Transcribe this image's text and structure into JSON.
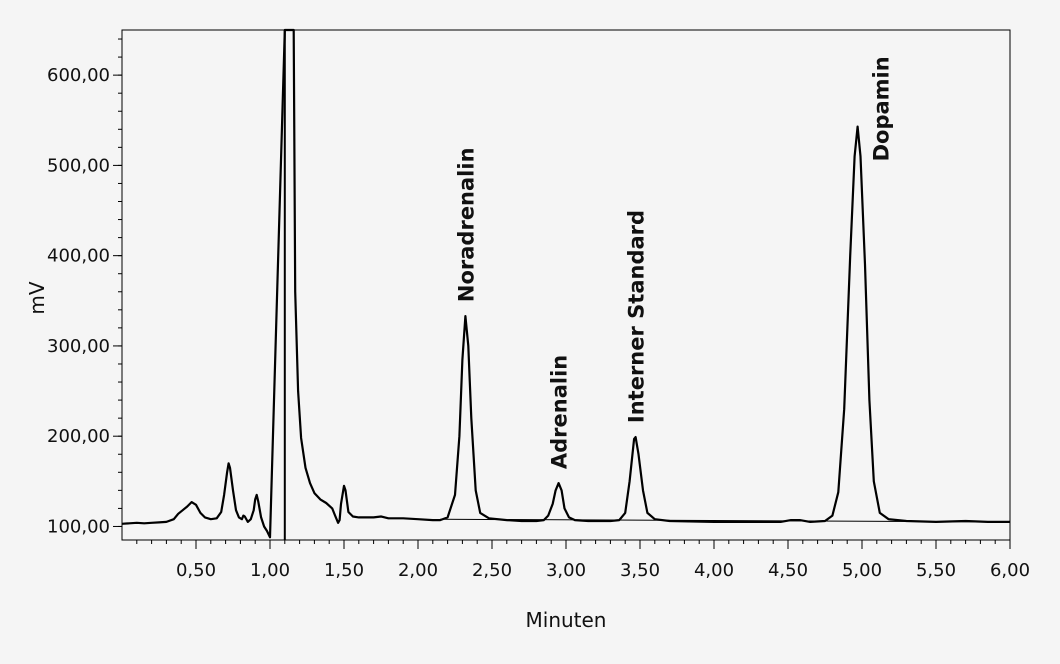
{
  "chart_data": {
    "type": "line",
    "xlabel": "Minuten",
    "ylabel": "mV",
    "xlim": [
      0,
      6.0
    ],
    "ylim": [
      85,
      650
    ],
    "grid": false,
    "x_ticks": [
      0.5,
      1.0,
      1.5,
      2.0,
      2.5,
      3.0,
      3.5,
      4.0,
      4.5,
      5.0,
      5.5,
      6.0
    ],
    "x_tick_labels": [
      "0,50",
      "1,00",
      "1,50",
      "2,00",
      "2,50",
      "3,00",
      "3,50",
      "4,00",
      "4,50",
      "5,00",
      "5,50",
      "6,00"
    ],
    "y_ticks": [
      100,
      200,
      300,
      400,
      500,
      600
    ],
    "y_tick_labels": [
      "100,00",
      "200,00",
      "300,00",
      "400,00",
      "500,00",
      "600,00"
    ],
    "series": [
      {
        "color": "#000000",
        "points": [
          [
            0.0,
            103
          ],
          [
            0.05,
            103.5
          ],
          [
            0.1,
            104
          ],
          [
            0.15,
            103.5
          ],
          [
            0.2,
            104
          ],
          [
            0.25,
            104.5
          ],
          [
            0.3,
            105
          ],
          [
            0.35,
            108
          ],
          [
            0.38,
            114
          ],
          [
            0.41,
            118
          ],
          [
            0.44,
            122
          ],
          [
            0.47,
            127
          ],
          [
            0.5,
            124
          ],
          [
            0.53,
            115
          ],
          [
            0.56,
            110
          ],
          [
            0.6,
            108
          ],
          [
            0.64,
            109
          ],
          [
            0.67,
            116
          ],
          [
            0.69,
            135
          ],
          [
            0.71,
            160
          ],
          [
            0.72,
            170
          ],
          [
            0.73,
            165
          ],
          [
            0.75,
            140
          ],
          [
            0.77,
            118
          ],
          [
            0.79,
            110
          ],
          [
            0.81,
            108
          ],
          [
            0.82,
            112
          ],
          [
            0.83,
            111
          ],
          [
            0.85,
            105
          ],
          [
            0.87,
            108
          ],
          [
            0.89,
            118
          ],
          [
            0.9,
            130
          ],
          [
            0.91,
            135
          ],
          [
            0.92,
            128
          ],
          [
            0.94,
            110
          ],
          [
            0.96,
            100
          ],
          [
            0.98,
            95
          ],
          [
            1.0,
            88
          ],
          [
            1.1,
            650
          ],
          [
            1.13,
            650
          ],
          [
            1.16,
            650
          ],
          [
            1.17,
            360
          ],
          [
            1.19,
            250
          ],
          [
            1.21,
            198
          ],
          [
            1.24,
            165
          ],
          [
            1.27,
            148
          ],
          [
            1.3,
            137
          ],
          [
            1.34,
            130
          ],
          [
            1.38,
            126
          ],
          [
            1.42,
            120
          ],
          [
            1.44,
            112
          ],
          [
            1.46,
            104
          ],
          [
            1.47,
            107
          ],
          [
            1.48,
            125
          ],
          [
            1.5,
            145
          ],
          [
            1.51,
            140
          ],
          [
            1.53,
            116
          ],
          [
            1.56,
            111
          ],
          [
            1.6,
            110
          ],
          [
            1.7,
            110
          ],
          [
            1.75,
            111
          ],
          [
            1.8,
            109
          ],
          [
            1.9,
            109
          ],
          [
            2.0,
            108
          ],
          [
            2.1,
            107
          ],
          [
            2.15,
            107
          ],
          [
            2.2,
            110
          ],
          [
            2.25,
            135
          ],
          [
            2.28,
            200
          ],
          [
            2.3,
            285
          ],
          [
            2.32,
            333
          ],
          [
            2.34,
            300
          ],
          [
            2.36,
            220
          ],
          [
            2.39,
            140
          ],
          [
            2.42,
            115
          ],
          [
            2.48,
            109
          ],
          [
            2.6,
            107
          ],
          [
            2.7,
            106
          ],
          [
            2.8,
            106
          ],
          [
            2.85,
            107
          ],
          [
            2.88,
            112
          ],
          [
            2.91,
            125
          ],
          [
            2.93,
            140
          ],
          [
            2.95,
            148
          ],
          [
            2.97,
            140
          ],
          [
            2.99,
            120
          ],
          [
            3.02,
            110
          ],
          [
            3.06,
            107
          ],
          [
            3.15,
            106
          ],
          [
            3.3,
            106
          ],
          [
            3.36,
            107
          ],
          [
            3.4,
            115
          ],
          [
            3.43,
            150
          ],
          [
            3.46,
            197
          ],
          [
            3.47,
            199
          ],
          [
            3.49,
            180
          ],
          [
            3.52,
            140
          ],
          [
            3.55,
            115
          ],
          [
            3.6,
            108
          ],
          [
            3.7,
            106
          ],
          [
            4.0,
            105
          ],
          [
            4.3,
            105
          ],
          [
            4.45,
            105
          ],
          [
            4.52,
            107
          ],
          [
            4.58,
            107
          ],
          [
            4.65,
            105
          ],
          [
            4.75,
            106
          ],
          [
            4.8,
            112
          ],
          [
            4.84,
            138
          ],
          [
            4.88,
            230
          ],
          [
            4.92,
            400
          ],
          [
            4.95,
            510
          ],
          [
            4.97,
            543
          ],
          [
            4.99,
            510
          ],
          [
            5.02,
            390
          ],
          [
            5.05,
            240
          ],
          [
            5.08,
            150
          ],
          [
            5.12,
            115
          ],
          [
            5.18,
            108
          ],
          [
            5.3,
            106
          ],
          [
            5.5,
            105
          ],
          [
            5.7,
            106
          ],
          [
            5.85,
            105
          ],
          [
            6.0,
            105
          ]
        ]
      }
    ],
    "annotations": [
      {
        "text": "Noradrenalin",
        "x": 2.32,
        "y": 333
      },
      {
        "text": "Adrenalin",
        "x": 2.95,
        "y": 148
      },
      {
        "text": "Interner Standard",
        "x": 3.47,
        "y": 199
      },
      {
        "text": "Dopamin",
        "x": 4.97,
        "y": 543
      }
    ]
  }
}
